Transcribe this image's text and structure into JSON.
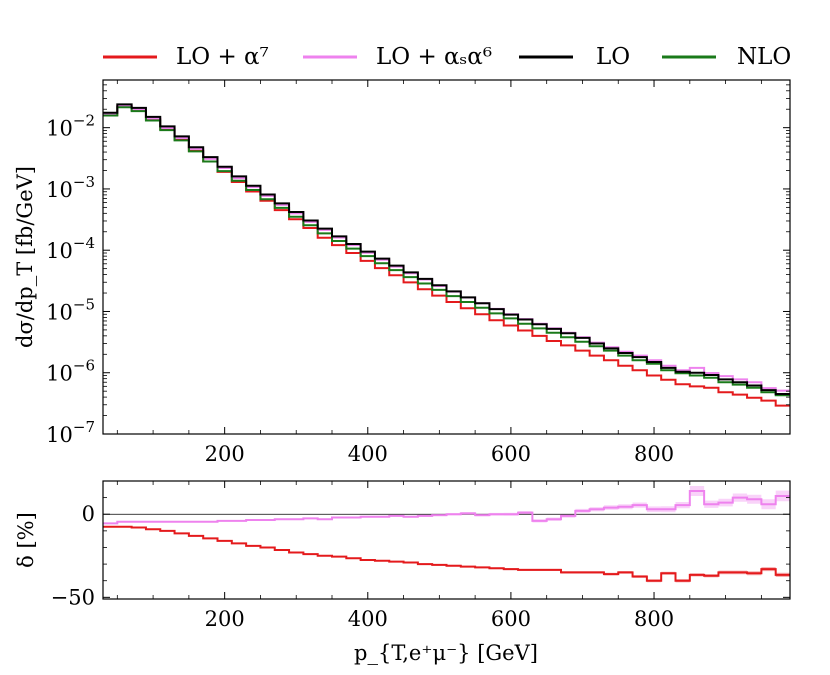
{
  "legend": [
    {
      "label": "LO + α⁷",
      "color": "#e41a1c"
    },
    {
      "label": "LO + αₛα⁶",
      "color": "#ee82ee"
    },
    {
      "label": "LO",
      "color": "#000000"
    },
    {
      "label": "NLO",
      "color": "#1a7a1a"
    }
  ],
  "chart_data": [
    {
      "type": "line",
      "subtype": "step-histogram",
      "panel": "main",
      "xlabel": "p_{T,e⁺μ⁻} [GeV]",
      "ylabel": "dσ/dp_T [fb/GeV]",
      "yscale": "log",
      "xlim": [
        30,
        990
      ],
      "ylim": [
        1e-07,
        0.06
      ],
      "xticks": [
        200,
        400,
        600,
        800
      ],
      "yticks": [
        {
          "value": 1e-07,
          "base": "10",
          "exp": "−7"
        },
        {
          "value": 1e-06,
          "base": "10",
          "exp": "−6"
        },
        {
          "value": 1e-05,
          "base": "10",
          "exp": "−5"
        },
        {
          "value": 0.0001,
          "base": "10",
          "exp": "−4"
        },
        {
          "value": 0.001,
          "base": "10",
          "exp": "−3"
        },
        {
          "value": 0.01,
          "base": "10",
          "exp": "−2"
        }
      ],
      "bin_edges": [
        30,
        50,
        70,
        90,
        110,
        130,
        150,
        170,
        190,
        210,
        230,
        250,
        270,
        290,
        310,
        330,
        350,
        370,
        390,
        410,
        430,
        450,
        470,
        490,
        510,
        530,
        550,
        570,
        590,
        610,
        630,
        650,
        670,
        690,
        710,
        730,
        750,
        770,
        790,
        810,
        830,
        850,
        870,
        890,
        910,
        930,
        950,
        970,
        990
      ],
      "series": [
        {
          "name": "LO",
          "color": "#000000",
          "values": [
            0.0175,
            0.024,
            0.021,
            0.015,
            0.0105,
            0.0072,
            0.0048,
            0.0033,
            0.0023,
            0.0016,
            0.00113,
            0.00081,
            0.00058,
            0.00042,
            0.000305,
            0.000225,
            0.000168,
            0.000126,
            9.5e-05,
            7.3e-05,
            5.6e-05,
            4.35e-05,
            3.4e-05,
            2.68e-05,
            2.13e-05,
            1.7e-05,
            1.36e-05,
            1.09e-05,
            8.9e-06,
            7.4e-06,
            6.2e-06,
            5.2e-06,
            4.4e-06,
            3.7e-06,
            3e-06,
            2.5e-06,
            2.1e-06,
            1.8e-06,
            1.5e-06,
            1.2e-06,
            1.04e-06,
            1e-06,
            9.2e-07,
            7.8e-07,
            7e-07,
            6.2e-07,
            5.2e-07,
            4.5e-07
          ]
        },
        {
          "name": "LO + α⁷",
          "color": "#e41a1c",
          "values": [
            0.0162,
            0.0223,
            0.0194,
            0.0137,
            0.0095,
            0.0064,
            0.0042,
            0.0028,
            0.0019,
            0.0013,
            0.00091,
            0.00064,
            0.00045,
            0.00032,
            0.00023,
            0.00016,
            0.000121,
            9e-05,
            6.7e-05,
            5.1e-05,
            3.9e-05,
            2.98e-05,
            2.31e-05,
            1.81e-05,
            1.43e-05,
            1.13e-05,
            9e-06,
            7.2e-06,
            5.9e-06,
            4.9e-06,
            4e-06,
            3.3e-06,
            2.8e-06,
            2.3e-06,
            1.9e-06,
            1.6e-06,
            1.3e-06,
            1.1e-06,
            9e-07,
            7.7e-07,
            6.5e-07,
            6e-07,
            5.7e-07,
            4.8e-07,
            4.4e-07,
            3.9e-07,
            3.5e-07,
            2.9e-07
          ]
        },
        {
          "name": "LO + αₛα⁶",
          "color": "#ee82ee",
          "values": [
            0.0165,
            0.0227,
            0.0199,
            0.0142,
            0.0099,
            0.0068,
            0.0045,
            0.0031,
            0.0022,
            0.0015,
            0.00107,
            0.00077,
            0.00055,
            0.0004,
            0.00029,
            0.000215,
            0.000161,
            0.000121,
            9.1e-05,
            7e-05,
            5.4e-05,
            4.21e-05,
            3.32e-05,
            2.6e-05,
            2.11e-05,
            1.69e-05,
            1.36e-05,
            1.1e-05,
            9e-06,
            7.5e-06,
            6.3e-06,
            5.3e-06,
            4.5e-06,
            3.8e-06,
            3.1e-06,
            2.6e-06,
            2.2e-06,
            1.9e-06,
            1.6e-06,
            1.3e-06,
            1.1e-06,
            1.2e-06,
            9.9e-07,
            8.8e-07,
            7.8e-07,
            7e-07,
            5.6e-07,
            5.1e-07
          ]
        },
        {
          "name": "NLO",
          "color": "#1a7a1a",
          "values": [
            0.0158,
            0.0215,
            0.0186,
            0.0131,
            0.0091,
            0.0062,
            0.0041,
            0.0028,
            0.00195,
            0.00136,
            0.00096,
            0.00068,
            0.00049,
            0.000352,
            0.000256,
            0.000188,
            0.000141,
            0.000106,
            8e-05,
            6.12e-05,
            4.73e-05,
            3.64e-05,
            2.86e-05,
            2.25e-05,
            1.78e-05,
            1.43e-05,
            1.15e-05,
            9.3e-06,
            7.7e-06,
            6.3e-06,
            5.3e-06,
            4.5e-06,
            3.8e-06,
            3.2e-06,
            2.7e-06,
            2.3e-06,
            1.9e-06,
            1.6e-06,
            1.4e-06,
            1.1e-06,
            9.8e-07,
            9e-07,
            8.3e-07,
            7e-07,
            6.4e-07,
            5.7e-07,
            4.8e-07,
            4.3e-07
          ]
        }
      ]
    },
    {
      "type": "line",
      "subtype": "step-histogram",
      "panel": "ratio",
      "xlabel": "p_{T,e⁺μ⁻} [GeV]",
      "ylabel": "δ [%]",
      "xlim": [
        30,
        990
      ],
      "ylim": [
        -51,
        20
      ],
      "xticks": [
        200,
        400,
        600,
        800
      ],
      "yticks": [
        {
          "value": 0,
          "label": "0"
        },
        {
          "value": -50,
          "label": "−50"
        }
      ],
      "reference_line": 0,
      "series": [
        {
          "name": "LO + α⁷",
          "color": "#e41a1c",
          "values": [
            -7.5,
            -7.5,
            -8,
            -9,
            -10,
            -11.5,
            -13,
            -14.5,
            -16,
            -17.5,
            -19,
            -20,
            -21.5,
            -23,
            -24,
            -25,
            -25.5,
            -26.5,
            -27.5,
            -28,
            -28.5,
            -29,
            -30,
            -30.5,
            -31,
            -31.5,
            -32,
            -32.5,
            -33,
            -33.5,
            -33.5,
            -33.5,
            -35,
            -35,
            -35,
            -36,
            -35,
            -37.5,
            -40,
            -35.5,
            -40,
            -36.5,
            -37,
            -35,
            -35,
            -35.5,
            -33,
            -36.5
          ]
        },
        {
          "name": "LO + αₛα⁶",
          "color": "#ee82ee",
          "values": [
            -5.5,
            -4.5,
            -4.5,
            -4.5,
            -4.5,
            -4.5,
            -4.5,
            -4.5,
            -4,
            -4,
            -3.5,
            -3.5,
            -3,
            -3,
            -2.5,
            -3,
            -2,
            -2,
            -1.5,
            -1.5,
            -1,
            -1.5,
            -1,
            -0.5,
            0,
            0.5,
            -0.5,
            0,
            0,
            1,
            -4,
            -3,
            -1,
            2,
            3,
            4,
            4.5,
            5.5,
            3,
            3,
            5.5,
            14,
            6,
            7,
            10,
            9,
            6,
            11
          ]
        }
      ],
      "bands": [
        {
          "name": "LO + αₛα⁶ band",
          "color": "#ee82ee",
          "halfwidth": [
            0.4,
            0.4,
            0.4,
            0.4,
            0.4,
            0.4,
            0.4,
            0.4,
            0.4,
            0.4,
            0.5,
            0.5,
            0.5,
            0.5,
            0.5,
            0.5,
            0.5,
            0.6,
            0.6,
            0.6,
            0.6,
            0.6,
            0.7,
            0.7,
            0.7,
            0.8,
            0.8,
            0.8,
            0.9,
            0.9,
            1,
            1,
            1.1,
            1.2,
            1.3,
            1.4,
            1.5,
            1.6,
            1.7,
            1.8,
            1.9,
            3,
            2.2,
            2.3,
            2.5,
            2.7,
            3,
            3.2
          ]
        },
        {
          "name": "LO + α⁷ band",
          "color": "#e41a1c",
          "halfwidth": [
            0.2,
            0.2,
            0.2,
            0.2,
            0.2,
            0.2,
            0.3,
            0.3,
            0.3,
            0.3,
            0.3,
            0.3,
            0.3,
            0.3,
            0.3,
            0.4,
            0.4,
            0.4,
            0.4,
            0.4,
            0.4,
            0.4,
            0.5,
            0.5,
            0.5,
            0.5,
            0.5,
            0.5,
            0.6,
            0.6,
            0.6,
            0.6,
            0.7,
            0.7,
            0.7,
            0.8,
            0.8,
            0.8,
            0.9,
            0.9,
            1,
            1,
            1,
            1.1,
            1.1,
            1.2,
            1.2,
            1.3
          ]
        }
      ]
    }
  ]
}
